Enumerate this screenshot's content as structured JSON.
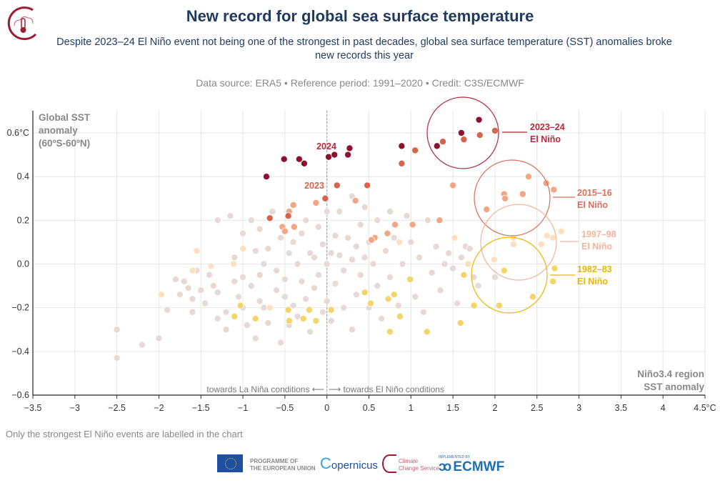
{
  "header": {
    "title": "New record for global sea surface temperature",
    "subtitle": "Despite 2023–24 El Niño event not being one of the strongest in past decades, global sea surface temperature (SST) anomalies broke new records this year",
    "source": "Data source: ERA5 • Reference period: 1991–2020 • Credit: C3S/ECMWF"
  },
  "footer": {
    "note": "Only the strongest El Niño events are labelled in the chart",
    "eu_label_1": "PROGRAMME OF",
    "eu_label_2": "THE EUROPEAN UNION",
    "copernicus": "opernicus",
    "c3s_1": "Climate",
    "c3s_2": "Change Service",
    "ecmwf_small": "IMPLEMENTED BY",
    "ecmwf": "ECMWF"
  },
  "colors": {
    "y2024": "#8c1230",
    "y2023": "#d9624a",
    "e2015": "#f2a684",
    "e1997": "#fde0c2",
    "e1982": "#f5d46a",
    "other": "#e6dad7",
    "c2023": "#b52a3c",
    "c2015": "#d9705a",
    "c1997": "#f4b49a",
    "c1982": "#e8b800",
    "title": "#1f3a5f",
    "logo": "#9b1b30"
  },
  "chart_data": {
    "type": "scatter",
    "title": "New record for global sea surface temperature",
    "ylabel": [
      "Global SST",
      "anomaly",
      "(60ºS-60ºN)"
    ],
    "xlabel": [
      "Niño3.4 region",
      "SST anomaly"
    ],
    "xlim": [
      -3.5,
      4.5
    ],
    "ylim": [
      -0.6,
      0.7
    ],
    "grid": true,
    "xticks": [
      "−3.5",
      "−3",
      "−2.5",
      "−2",
      "−1.5",
      "−1",
      "−0.5",
      "0",
      "0.5",
      "1",
      "1.5",
      "2",
      "2.5",
      "3",
      "3.5",
      "4",
      "4.5°C"
    ],
    "yticks": [
      "0.6°C",
      "0.4",
      "0.2",
      "0.0",
      "−0.2",
      "−0.4",
      "−0.6"
    ],
    "annotations": {
      "year_2024": "2024",
      "year_2023": "2023",
      "lanina": "towards La Niña conditions ⟵",
      "elnino": "⟶ towards El Niño conditions"
    },
    "events": [
      {
        "label1": "2023–24",
        "label2": "El Niño",
        "color": "#b52a3c"
      },
      {
        "label1": "2015–16",
        "label2": "El Niño",
        "color": "#d9705a"
      },
      {
        "label1": "1997–98",
        "label2": "El Niño",
        "color": "#f4b49a"
      },
      {
        "label1": "1982–83",
        "label2": "El Niño",
        "color": "#e8b800"
      }
    ],
    "series": [
      {
        "key": "other",
        "color": "#e6dad7",
        "points": [
          [
            -2.5,
            -0.3
          ],
          [
            -2.5,
            -0.43
          ],
          [
            -2.2,
            -0.37
          ],
          [
            -2.0,
            -0.34
          ],
          [
            -1.9,
            -0.21
          ],
          [
            -1.8,
            -0.07
          ],
          [
            -1.75,
            -0.14
          ],
          [
            -1.7,
            -0.08
          ],
          [
            -1.65,
            -0.11
          ],
          [
            -1.6,
            -0.16
          ],
          [
            -1.6,
            -0.22
          ],
          [
            -1.55,
            -0.03
          ],
          [
            -1.5,
            -0.12
          ],
          [
            -1.45,
            -0.18
          ],
          [
            -1.4,
            -0.05
          ],
          [
            -1.35,
            -0.1
          ],
          [
            -1.3,
            -0.13
          ],
          [
            -1.3,
            -0.25
          ],
          [
            -1.3,
            0.2
          ],
          [
            -1.2,
            -0.22
          ],
          [
            -1.2,
            -0.3
          ],
          [
            -1.15,
            0.22
          ],
          [
            -1.1,
            0.03
          ],
          [
            -1.1,
            -0.08
          ],
          [
            -1.05,
            -0.15
          ],
          [
            -1.0,
            -0.2
          ],
          [
            -1.0,
            -0.06
          ],
          [
            -1.0,
            0.14
          ],
          [
            -0.95,
            -0.28
          ],
          [
            -0.9,
            0.2
          ],
          [
            -0.9,
            -0.1
          ],
          [
            -0.85,
            0.06
          ],
          [
            -0.85,
            -0.34
          ],
          [
            -0.8,
            -0.17
          ],
          [
            -0.8,
            0.16
          ],
          [
            -0.8,
            -0.05
          ],
          [
            -0.75,
            -0.2
          ],
          [
            -0.75,
            0.0
          ],
          [
            -0.7,
            0.07
          ],
          [
            -0.7,
            -0.27
          ],
          [
            -0.65,
            0.24
          ],
          [
            -0.6,
            -0.12
          ],
          [
            -0.6,
            -0.03
          ],
          [
            -0.55,
            0.12
          ],
          [
            -0.55,
            -0.36
          ],
          [
            -0.5,
            -0.15
          ],
          [
            -0.5,
            -0.07
          ],
          [
            -0.45,
            0.05
          ],
          [
            -0.45,
            -0.28
          ],
          [
            -0.4,
            -0.19
          ],
          [
            -0.4,
            0.1
          ],
          [
            -0.35,
            0.0
          ],
          [
            -0.35,
            -0.24
          ],
          [
            -0.3,
            -0.08
          ],
          [
            -0.3,
            0.14
          ],
          [
            -0.25,
            -0.16
          ],
          [
            -0.25,
            0.2
          ],
          [
            -0.2,
            -0.31
          ],
          [
            -0.2,
            0.05
          ],
          [
            -0.15,
            0.03
          ],
          [
            -0.15,
            -0.11
          ],
          [
            -0.1,
            0.17
          ],
          [
            -0.1,
            -0.05
          ],
          [
            -0.05,
            0.09
          ],
          [
            -0.05,
            -0.22
          ],
          [
            0.0,
            0.0
          ],
          [
            0.0,
            0.24
          ],
          [
            0.0,
            -0.17
          ],
          [
            0.05,
            0.05
          ],
          [
            0.05,
            -0.26
          ],
          [
            0.1,
            0.13
          ],
          [
            0.1,
            -0.09
          ],
          [
            0.15,
            0.04
          ],
          [
            0.15,
            0.24
          ],
          [
            0.2,
            -0.2
          ],
          [
            0.2,
            -0.03
          ],
          [
            0.25,
            0.12
          ],
          [
            0.3,
            0.02
          ],
          [
            0.3,
            0.31
          ],
          [
            0.3,
            -0.3
          ],
          [
            0.35,
            0.08
          ],
          [
            0.35,
            -0.14
          ],
          [
            0.4,
            0.18
          ],
          [
            0.4,
            -0.05
          ],
          [
            0.45,
            0.26
          ],
          [
            0.45,
            0.03
          ],
          [
            0.5,
            -0.2
          ],
          [
            0.5,
            0.1
          ],
          [
            0.55,
            0.0
          ],
          [
            0.6,
            0.2
          ],
          [
            0.6,
            -0.1
          ],
          [
            0.65,
            -0.25
          ],
          [
            0.7,
            0.06
          ],
          [
            0.75,
            0.24
          ],
          [
            0.75,
            -0.06
          ],
          [
            0.8,
            0.12
          ],
          [
            0.85,
            -0.19
          ],
          [
            0.9,
            0.0
          ],
          [
            0.95,
            0.22
          ],
          [
            1.0,
            -0.07
          ],
          [
            1.0,
            0.1
          ],
          [
            1.05,
            -0.15
          ],
          [
            1.1,
            0.03
          ],
          [
            1.15,
            -0.22
          ],
          [
            1.2,
            0.2
          ],
          [
            1.25,
            -0.04
          ],
          [
            1.3,
            0.08
          ],
          [
            1.35,
            -0.12
          ],
          [
            1.4,
            0.0
          ],
          [
            1.45,
            0.05
          ],
          [
            1.5,
            -0.02
          ],
          [
            1.55,
            -0.18
          ],
          [
            1.6,
            0.03
          ],
          [
            1.65,
            0.08
          ],
          [
            1.7,
            0.07
          ],
          [
            1.75,
            -0.06
          ],
          [
            1.8,
            -0.1
          ],
          [
            2.0,
            -0.06
          ]
        ]
      },
      {
        "key": "e1982",
        "color": "#f5d46a",
        "points": [
          [
            -1.03,
            -0.19
          ],
          [
            -1.1,
            -0.24
          ],
          [
            -0.85,
            -0.25
          ],
          [
            -0.46,
            -0.21
          ],
          [
            -0.45,
            -0.26
          ],
          [
            -0.21,
            -0.21
          ],
          [
            -0.28,
            -0.25
          ],
          [
            -0.13,
            -0.26
          ],
          [
            0.05,
            -0.21
          ],
          [
            0.45,
            -0.13
          ],
          [
            0.52,
            -0.18
          ],
          [
            0.73,
            -0.16
          ],
          [
            0.8,
            -0.14
          ],
          [
            0.87,
            -0.24
          ],
          [
            0.75,
            -0.31
          ],
          [
            0.99,
            -0.07
          ],
          [
            1.19,
            -0.31
          ],
          [
            1.63,
            -0.05
          ],
          [
            2.11,
            -0.03
          ],
          [
            2.71,
            -0.02
          ],
          [
            2.69,
            -0.08
          ],
          [
            2.45,
            -0.15
          ],
          [
            2.05,
            -0.19
          ],
          [
            1.59,
            -0.27
          ],
          [
            1.75,
            -0.19
          ]
        ]
      },
      {
        "key": "e1997",
        "color": "#fde0c2",
        "points": [
          [
            -1.55,
            0.06
          ],
          [
            -1.97,
            -0.14
          ],
          [
            -1.6,
            -0.03
          ],
          [
            -1.38,
            -0.01
          ],
          [
            -1.11,
            0.0
          ],
          [
            -1.0,
            0.07
          ],
          [
            0.86,
            0.1
          ],
          [
            -0.68,
            -0.2
          ],
          [
            1.52,
            0.12
          ],
          [
            1.99,
            0.02
          ],
          [
            2.22,
            0.09
          ],
          [
            2.22,
            0.12
          ],
          [
            2.55,
            0.09
          ],
          [
            2.62,
            0.13
          ],
          [
            2.69,
            0.12
          ],
          [
            2.79,
            0.15
          ],
          [
            1.68,
            0.0
          ]
        ]
      },
      {
        "key": "e2015",
        "color": "#f2a684",
        "points": [
          [
            -0.4,
            0.27
          ],
          [
            -0.45,
            0.24
          ],
          [
            -0.53,
            0.17
          ],
          [
            -0.5,
            0.15
          ],
          [
            -0.39,
            0.17
          ],
          [
            -0.13,
            0.28
          ],
          [
            0.34,
            0.29
          ],
          [
            0.72,
            0.14
          ],
          [
            0.57,
            0.12
          ],
          [
            0.53,
            0.11
          ],
          [
            0.81,
            0.18
          ],
          [
            1.02,
            0.18
          ],
          [
            1.34,
            0.2
          ],
          [
            1.5,
            0.36
          ],
          [
            1.9,
            0.25
          ],
          [
            2.11,
            0.32
          ],
          [
            2.12,
            0.3
          ],
          [
            2.33,
            0.32
          ],
          [
            2.4,
            0.4
          ],
          [
            2.61,
            0.37
          ],
          [
            2.7,
            0.34
          ]
        ]
      },
      {
        "key": "y2023",
        "color": "#d9624a",
        "points": [
          [
            -0.02,
            0.3
          ],
          [
            0.12,
            0.36
          ],
          [
            0.48,
            0.36
          ],
          [
            0.89,
            0.46
          ],
          [
            1.05,
            0.52
          ],
          [
            1.38,
            0.56
          ],
          [
            1.63,
            0.57
          ],
          [
            1.82,
            0.59
          ],
          [
            2.0,
            0.61
          ],
          [
            -0.68,
            0.21
          ],
          [
            -0.46,
            0.22
          ]
        ]
      },
      {
        "key": "y2024",
        "color": "#8c1230",
        "points": [
          [
            -0.72,
            0.4
          ],
          [
            -0.51,
            0.48
          ],
          [
            -0.33,
            0.48
          ],
          [
            -0.27,
            0.46
          ],
          [
            0.02,
            0.49
          ],
          [
            0.09,
            0.5
          ],
          [
            0.25,
            0.5
          ],
          [
            0.27,
            0.53
          ],
          [
            0.89,
            0.54
          ],
          [
            1.31,
            0.54
          ],
          [
            1.6,
            0.6
          ],
          [
            1.81,
            0.66
          ]
        ]
      }
    ]
  }
}
